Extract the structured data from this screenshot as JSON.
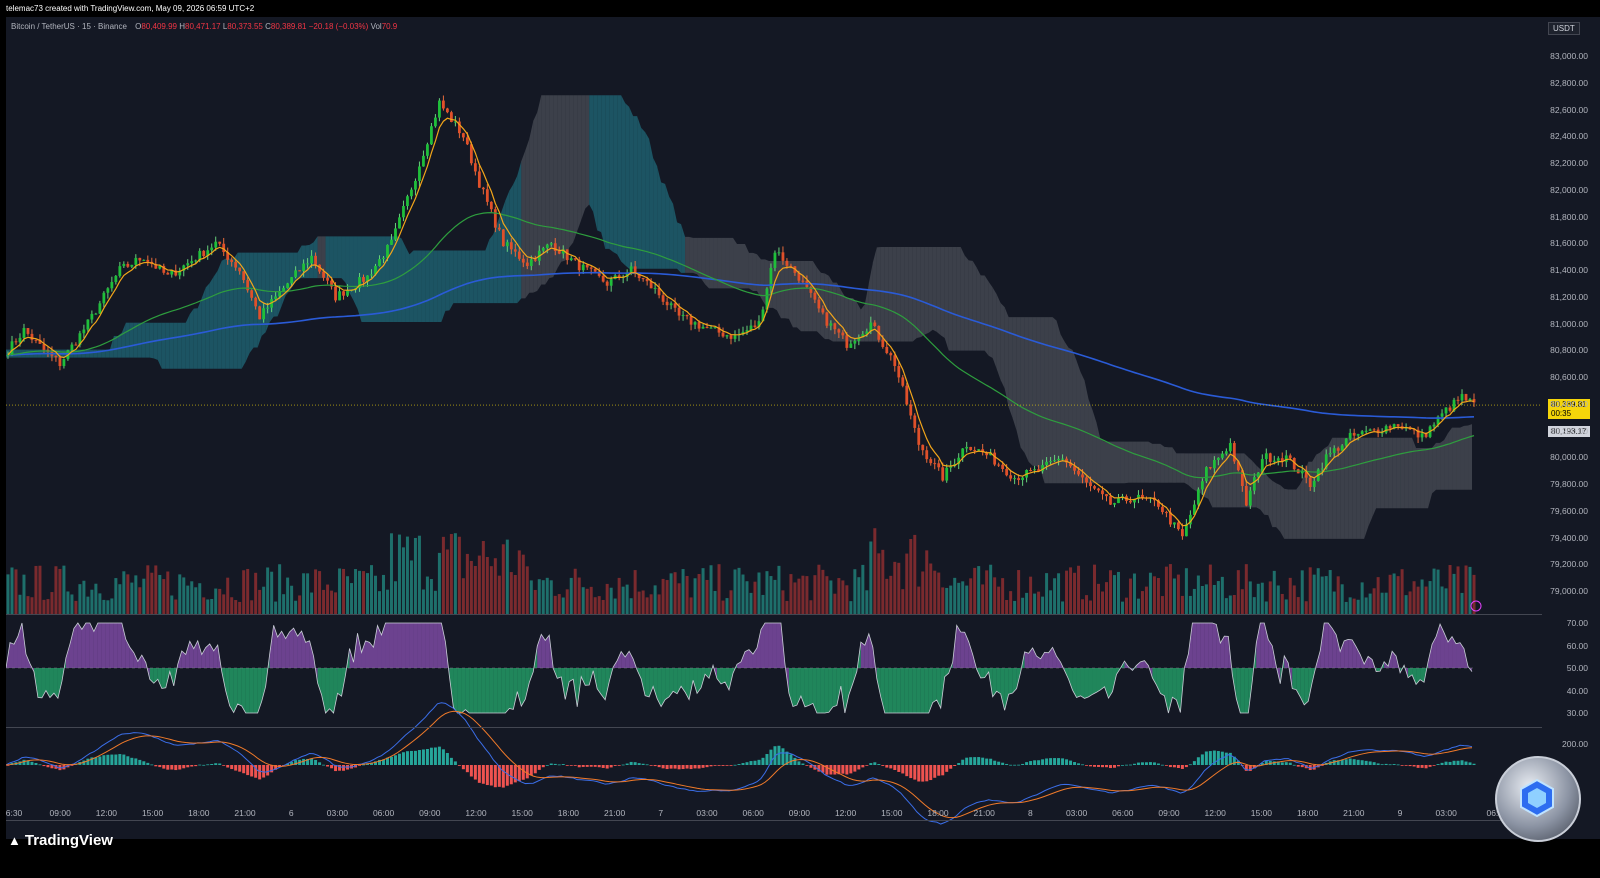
{
  "header": {
    "attribution": "telemac73 created with TradingView.com, May 09, 2026 06:59 UTC+2"
  },
  "legend": {
    "symbol": "Bitcoin / TetherUS · 15 · Binance",
    "open_label": "O",
    "open": "80,409.99",
    "high_label": "H",
    "high": "80,471.17",
    "low_label": "L",
    "low": "80,373.55",
    "close_label": "C",
    "close": "80,389.81",
    "change": "−20.18 (−0.03%)",
    "vol_label": "Vol",
    "vol": "70.9"
  },
  "axis": {
    "currency": "USDT",
    "price_ticks": [
      "83,000.00",
      "82,800.00",
      "82,600.00",
      "82,400.00",
      "82,200.00",
      "82,000.00",
      "81,800.00",
      "81,600.00",
      "81,400.00",
      "81,200.00",
      "81,000.00",
      "80,800.00",
      "80,600.00",
      "80,400.00",
      "80,200.00",
      "80,000.00",
      "79,800.00",
      "79,600.00",
      "79,400.00",
      "79,200.00",
      "79,000.00"
    ],
    "rsi_ticks": [
      "70.00",
      "60.00",
      "50.00",
      "40.00",
      "30.00"
    ],
    "macd_ticks": [
      "200.00"
    ],
    "time_ticks": [
      "6:30",
      "09:00",
      "12:00",
      "15:00",
      "18:00",
      "21:00",
      "6",
      "03:00",
      "06:00",
      "09:00",
      "12:00",
      "15:00",
      "18:00",
      "21:00",
      "7",
      "03:00",
      "06:00",
      "09:00",
      "12:00",
      "15:00",
      "18:00",
      "21:00",
      "8",
      "03:00",
      "06:00",
      "09:00",
      "12:00",
      "15:00",
      "18:00",
      "21:00",
      "9",
      "03:00",
      "06:"
    ],
    "last_price": "80,389.81",
    "countdown": "00:35",
    "ma_price": "80,193.17"
  },
  "colors": {
    "up": "#1fbf3a",
    "down": "#e0502a",
    "wick_up": "#66d17a",
    "wick_down": "#e86b3a",
    "ema_fast": "#f2a51a",
    "ema_mid": "#2e9e3e",
    "ema_slow": "#2a5bd7",
    "cloud_up": "#1d5f6e",
    "cloud_down": "#4a4d57",
    "vol_up": "#1e6f6b",
    "vol_down": "#7a2a2e",
    "rsi_up": "#9b59c9",
    "rsi_down": "#27c27a",
    "macd_line": "#3b6ee8",
    "signal_line": "#f07a2a",
    "last_price_bg": "#f5d50a"
  },
  "footer": {
    "brand": "TradingView"
  },
  "chart_data": [
    {
      "type": "candlestick",
      "title": "Bitcoin / TetherUS · 15 · Binance",
      "ylim": [
        78900,
        83100
      ],
      "anchors": [
        {
          "t": 0,
          "p": 80800
        },
        {
          "t": 4,
          "p": 80950
        },
        {
          "t": 9,
          "p": 80800
        },
        {
          "t": 13,
          "p": 80700
        },
        {
          "t": 20,
          "p": 81000
        },
        {
          "t": 28,
          "p": 81400
        },
        {
          "t": 34,
          "p": 81500
        },
        {
          "t": 40,
          "p": 81350
        },
        {
          "t": 45,
          "p": 81450
        },
        {
          "t": 52,
          "p": 81600
        },
        {
          "t": 58,
          "p": 81400
        },
        {
          "t": 63,
          "p": 81050
        },
        {
          "t": 70,
          "p": 81300
        },
        {
          "t": 76,
          "p": 81500
        },
        {
          "t": 82,
          "p": 81200
        },
        {
          "t": 90,
          "p": 81350
        },
        {
          "t": 96,
          "p": 81600
        },
        {
          "t": 102,
          "p": 82100
        },
        {
          "t": 108,
          "p": 82650
        },
        {
          "t": 114,
          "p": 82400
        },
        {
          "t": 118,
          "p": 82050
        },
        {
          "t": 124,
          "p": 81600
        },
        {
          "t": 130,
          "p": 81450
        },
        {
          "t": 136,
          "p": 81600
        },
        {
          "t": 142,
          "p": 81450
        },
        {
          "t": 150,
          "p": 81300
        },
        {
          "t": 156,
          "p": 81400
        },
        {
          "t": 162,
          "p": 81250
        },
        {
          "t": 168,
          "p": 81050
        },
        {
          "t": 176,
          "p": 80950
        },
        {
          "t": 182,
          "p": 80900
        },
        {
          "t": 188,
          "p": 81000
        },
        {
          "t": 192,
          "p": 81550
        },
        {
          "t": 198,
          "p": 81350
        },
        {
          "t": 204,
          "p": 81050
        },
        {
          "t": 210,
          "p": 80850
        },
        {
          "t": 216,
          "p": 81000
        },
        {
          "t": 222,
          "p": 80700
        },
        {
          "t": 228,
          "p": 80100
        },
        {
          "t": 234,
          "p": 79850
        },
        {
          "t": 240,
          "p": 80100
        },
        {
          "t": 246,
          "p": 80000
        },
        {
          "t": 252,
          "p": 79850
        },
        {
          "t": 258,
          "p": 79900
        },
        {
          "t": 264,
          "p": 80000
        },
        {
          "t": 270,
          "p": 79800
        },
        {
          "t": 276,
          "p": 79650
        },
        {
          "t": 282,
          "p": 79700
        },
        {
          "t": 288,
          "p": 79650
        },
        {
          "t": 294,
          "p": 79400
        },
        {
          "t": 300,
          "p": 79900
        },
        {
          "t": 306,
          "p": 80100
        },
        {
          "t": 310,
          "p": 79650
        },
        {
          "t": 314,
          "p": 80000
        },
        {
          "t": 320,
          "p": 80000
        },
        {
          "t": 326,
          "p": 79800
        },
        {
          "t": 330,
          "p": 80000
        },
        {
          "t": 336,
          "p": 80150
        },
        {
          "t": 342,
          "p": 80200
        },
        {
          "t": 348,
          "p": 80250
        },
        {
          "t": 354,
          "p": 80150
        },
        {
          "t": 360,
          "p": 80350
        },
        {
          "t": 364,
          "p": 80450
        },
        {
          "t": 367,
          "p": 80390
        }
      ],
      "ema_fast_note": "orange",
      "ema_mid_note": "green",
      "ema_slow_note": "blue"
    }
  ]
}
